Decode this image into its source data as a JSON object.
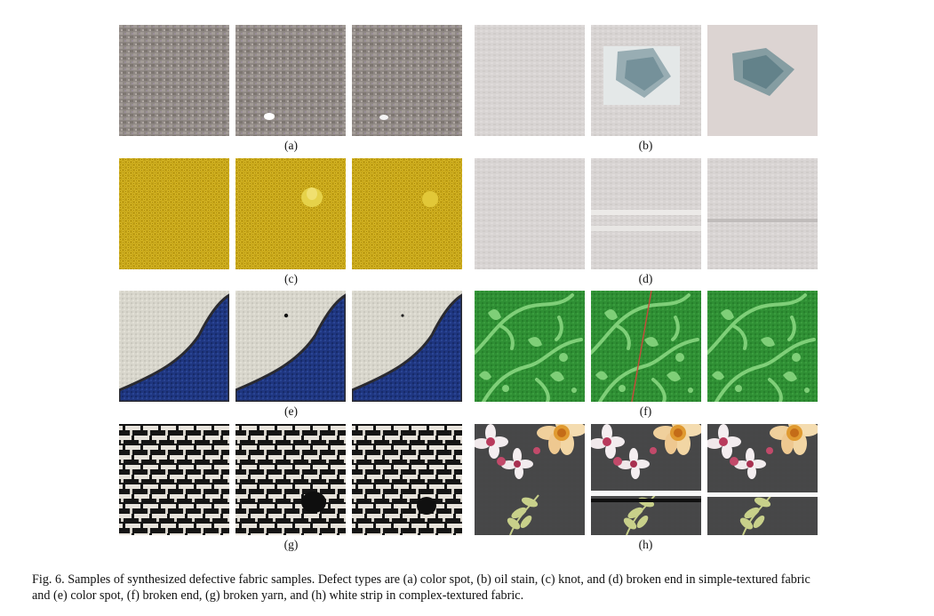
{
  "panels": {
    "a": {
      "label": "(a)"
    },
    "b": {
      "label": "(b)"
    },
    "c": {
      "label": "(c)"
    },
    "d": {
      "label": "(d)"
    },
    "e": {
      "label": "(e)"
    },
    "f": {
      "label": "(f)"
    },
    "g": {
      "label": "(g)"
    },
    "h": {
      "label": "(h)"
    }
  },
  "caption": {
    "line1": "Fig. 6.  Samples of synthesized defective fabric samples. Defect types are (a) color spot, (b) oil stain, (c) knot, and (d) broken end in simple-textured fabric",
    "line2": "and (e) color spot, (f) broken end, (g) broken yarn, and (h) white strip in complex-textured fabric."
  },
  "colors": {
    "gray_fabric": "#8f8884",
    "light_fabric": "#d8d4d2",
    "yellow_fabric": "#c8a818",
    "canvas_white": "#d8d6cc",
    "navy": "#1f3680",
    "green_fabric": "#2f8f34",
    "green_pattern": "#7fcf78",
    "black_white_weave": "#1a1a1a",
    "floral_dark": "#3a3a3a"
  }
}
